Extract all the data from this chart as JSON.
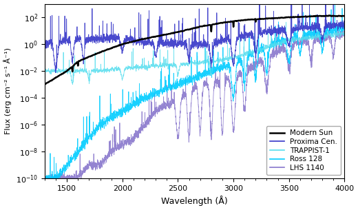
{
  "xlabel": "Wavelength (Å)",
  "ylabel": "Flux (erg cm⁻² s⁻¹ Å⁻¹)",
  "xlim": [
    1300,
    4000
  ],
  "ylim_log": [
    -10,
    3
  ],
  "legend_labels": [
    "Modern Sun",
    "Proxima Cen.",
    "TRAPPIST-1",
    "Ross 128",
    "LHS 1140"
  ],
  "colors": {
    "sun": "#000000",
    "proxima": "#3535c8",
    "trappist": "#55ddee",
    "ross128": "#00ccff",
    "lhs1140": "#8877cc"
  },
  "linewidths": {
    "sun": 1.8,
    "proxima": 0.6,
    "trappist": 0.6,
    "ross128": 0.6,
    "lhs1140": 0.6
  },
  "seed": 17
}
